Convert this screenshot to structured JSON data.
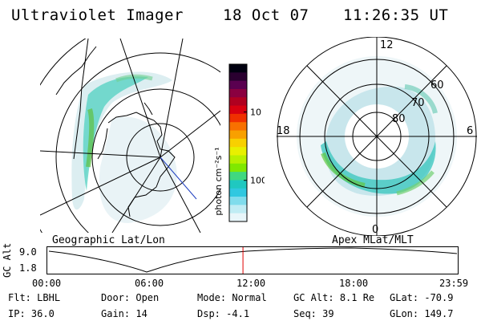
{
  "header": {
    "instrument": "Ultraviolet Imager",
    "date": "18 Oct 07",
    "time": "11:26:35 UT"
  },
  "geo_panel": {
    "label": "Geographic Lat/Lon"
  },
  "apex_panel": {
    "label": "Apex MLat/MLT",
    "mlt_labels": [
      "12",
      "18",
      "6",
      "0"
    ],
    "mlat_labels": [
      "60",
      "70",
      "80"
    ]
  },
  "colorbar": {
    "units_label": "photon cm⁻²s⁻¹",
    "ticks": [
      "100",
      "10"
    ],
    "colors": [
      "#000010",
      "#2a0030",
      "#5a0050",
      "#8a0040",
      "#b00020",
      "#d80010",
      "#f03000",
      "#f87000",
      "#f8a000",
      "#f8d000",
      "#e8f000",
      "#b8f000",
      "#80e800",
      "#40d880",
      "#20c8c0",
      "#30c8e0",
      "#80dcec",
      "#c0ecf4",
      "#e8f6fa"
    ],
    "tick_values": [
      10,
      100
    ]
  },
  "altitude_plot": {
    "axis_label": "GC Alt",
    "y_ticks": [
      "9.0",
      "1.8"
    ],
    "x_ticks": [
      "00:00",
      "06:00",
      "12:00",
      "18:00",
      "23:59"
    ],
    "current_time_marker": "11:26",
    "marker_color": "#e00000"
  },
  "footer": {
    "row1": [
      {
        "label": "Flt:",
        "value": "LBHL"
      },
      {
        "label": "Door:",
        "value": "Open"
      },
      {
        "label": "Mode:",
        "value": "Normal"
      },
      {
        "label": "GC Alt:",
        "value": "8.1 Re"
      },
      {
        "label": "GLat:",
        "value": "-70.9"
      }
    ],
    "row2": [
      {
        "label": "IP:",
        "value": "36.0"
      },
      {
        "label": "Gain:",
        "value": "14"
      },
      {
        "label": "Dsp:",
        "value": "-4.1"
      },
      {
        "label": "Seq:",
        "value": "39"
      },
      {
        "label": "GLon:",
        "value": "149.7"
      }
    ]
  }
}
